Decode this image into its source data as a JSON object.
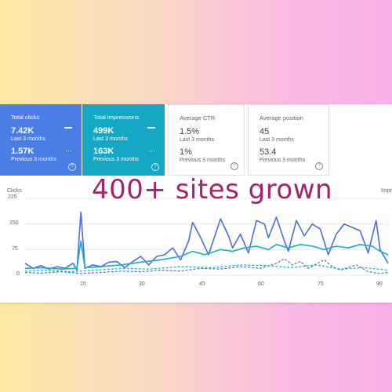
{
  "cards": [
    {
      "title": "Total clicks",
      "current_value": "7.42K",
      "current_label": "Last 3 months",
      "previous_value": "1.57K",
      "previous_label": "Previous 3 months",
      "color": "#4a7de5"
    },
    {
      "title": "Total impressions",
      "current_value": "499K",
      "current_label": "Last 3 months",
      "previous_value": "163K",
      "previous_label": "Previous 3 months",
      "color": "#15a7c6"
    },
    {
      "title": "Average CTR",
      "current_value": "1.5%",
      "current_label": "Last 3 months",
      "previous_value": "1%",
      "previous_label": "Previous 3 months"
    },
    {
      "title": "Average position",
      "current_value": "45",
      "current_label": "Last 3 months",
      "previous_value": "53.4",
      "previous_label": "Previous 3 months"
    }
  ],
  "overlay_text": "400+ sites grown",
  "help_glyph": "?",
  "chart_data": {
    "type": "line",
    "ylabel": "Clicks",
    "y2label": "Impr",
    "y_ticks": [
      "0",
      "75",
      "150",
      "225"
    ],
    "x_ticks": [
      "15",
      "30",
      "45",
      "60",
      "75",
      "90"
    ],
    "ylim": [
      0,
      225
    ],
    "xlim": [
      1,
      92
    ],
    "series": [
      {
        "color": "#4a6fd8",
        "dashed": false,
        "values": [
          [
            1,
            35
          ],
          [
            3,
            20
          ],
          [
            5,
            28
          ],
          [
            7,
            18
          ],
          [
            9,
            25
          ],
          [
            11,
            20
          ],
          [
            13,
            35
          ],
          [
            14,
            15
          ],
          [
            15,
            185
          ],
          [
            16,
            20
          ],
          [
            18,
            30
          ],
          [
            20,
            25
          ],
          [
            22,
            38
          ],
          [
            24,
            40
          ],
          [
            26,
            22
          ],
          [
            28,
            40
          ],
          [
            30,
            55
          ],
          [
            32,
            30
          ],
          [
            34,
            55
          ],
          [
            36,
            60
          ],
          [
            38,
            80
          ],
          [
            40,
            45
          ],
          [
            42,
            100
          ],
          [
            43,
            155
          ],
          [
            45,
            110
          ],
          [
            47,
            60
          ],
          [
            48,
            95
          ],
          [
            50,
            165
          ],
          [
            52,
            115
          ],
          [
            53,
            80
          ],
          [
            55,
            120
          ],
          [
            57,
            65
          ],
          [
            59,
            160
          ],
          [
            61,
            150
          ],
          [
            62,
            110
          ],
          [
            64,
            170
          ],
          [
            66,
            100
          ],
          [
            67,
            70
          ],
          [
            69,
            160
          ],
          [
            71,
            115
          ],
          [
            73,
            150
          ],
          [
            75,
            135
          ],
          [
            77,
            60
          ],
          [
            79,
            120
          ],
          [
            81,
            150
          ],
          [
            83,
            140
          ],
          [
            85,
            130
          ],
          [
            87,
            65
          ],
          [
            89,
            160
          ],
          [
            90,
            75
          ],
          [
            92,
            35
          ]
        ]
      },
      {
        "color": "#16b0c6",
        "dashed": false,
        "values": [
          [
            1,
            20
          ],
          [
            5,
            22
          ],
          [
            10,
            18
          ],
          [
            14,
            20
          ],
          [
            15,
            100
          ],
          [
            16,
            22
          ],
          [
            20,
            25
          ],
          [
            25,
            30
          ],
          [
            30,
            38
          ],
          [
            35,
            45
          ],
          [
            40,
            55
          ],
          [
            43,
            70
          ],
          [
            46,
            60
          ],
          [
            50,
            75
          ],
          [
            53,
            70
          ],
          [
            56,
            80
          ],
          [
            59,
            85
          ],
          [
            62,
            75
          ],
          [
            64,
            90
          ],
          [
            67,
            80
          ],
          [
            70,
            90
          ],
          [
            73,
            85
          ],
          [
            76,
            75
          ],
          [
            79,
            85
          ],
          [
            82,
            80
          ],
          [
            85,
            90
          ],
          [
            88,
            85
          ],
          [
            90,
            70
          ],
          [
            92,
            60
          ]
        ]
      },
      {
        "color": "#4a6fd8",
        "dashed": true,
        "values": [
          [
            1,
            8
          ],
          [
            5,
            6
          ],
          [
            10,
            10
          ],
          [
            15,
            5
          ],
          [
            20,
            8
          ],
          [
            25,
            12
          ],
          [
            30,
            10
          ],
          [
            35,
            15
          ],
          [
            40,
            12
          ],
          [
            45,
            20
          ],
          [
            50,
            18
          ],
          [
            55,
            25
          ],
          [
            60,
            20
          ],
          [
            64,
            35
          ],
          [
            66,
            48
          ],
          [
            68,
            30
          ],
          [
            70,
            40
          ],
          [
            72,
            20
          ],
          [
            76,
            45
          ],
          [
            78,
            25
          ],
          [
            80,
            15
          ],
          [
            84,
            30
          ],
          [
            87,
            10
          ],
          [
            90,
            5
          ],
          [
            92,
            8
          ]
        ]
      },
      {
        "color": "#16b0c6",
        "dashed": true,
        "values": [
          [
            1,
            12
          ],
          [
            6,
            15
          ],
          [
            12,
            10
          ],
          [
            18,
            14
          ],
          [
            25,
            20
          ],
          [
            32,
            18
          ],
          [
            40,
            25
          ],
          [
            48,
            22
          ],
          [
            55,
            30
          ],
          [
            62,
            28
          ],
          [
            68,
            22
          ],
          [
            74,
            30
          ],
          [
            80,
            18
          ],
          [
            86,
            22
          ],
          [
            92,
            15
          ]
        ]
      }
    ]
  }
}
